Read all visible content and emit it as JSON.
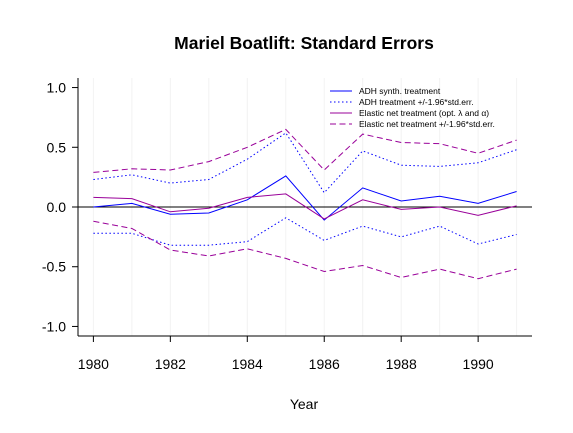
{
  "chart_data": {
    "type": "line",
    "title": "Mariel Boatlift: Standard Errors",
    "xlabel": "Year",
    "ylabel": "",
    "xlim": [
      1979.6,
      1991.4
    ],
    "ylim": [
      -1.08,
      1.08
    ],
    "x": [
      1980,
      1981,
      1982,
      1983,
      1984,
      1985,
      1986,
      1987,
      1988,
      1989,
      1990,
      1991
    ],
    "x_ticks": [
      1980,
      1982,
      1984,
      1986,
      1988,
      1990
    ],
    "x_tick_labels": [
      "1980",
      "1982",
      "1984",
      "1986",
      "1988",
      "1990"
    ],
    "y_ticks": [
      -1.0,
      -0.5,
      0.0,
      0.5,
      1.0
    ],
    "y_tick_labels": [
      "-1.0",
      "-0.5",
      "0.0",
      "0.5",
      "1.0"
    ],
    "zero_line": true,
    "vertical_grid": true,
    "legend_position": "top-right",
    "colors": {
      "adh": "#0000ff",
      "elastic": "#990099",
      "zero": "#000000",
      "grid": "#f2f2f2"
    },
    "series": [
      {
        "name": "ADH synth. treatment",
        "style": "solid",
        "color": "#0000ff",
        "values": [
          0.0,
          0.03,
          -0.06,
          -0.05,
          0.06,
          0.26,
          -0.11,
          0.16,
          0.05,
          0.09,
          0.03,
          0.13
        ]
      },
      {
        "name": "ADH treatment +/-1.96*std.err.",
        "style": "dotted",
        "color": "#0000ff",
        "values": [
          0.23,
          0.27,
          0.2,
          0.23,
          0.4,
          0.62,
          0.12,
          0.47,
          0.35,
          0.34,
          0.37,
          0.48
        ]
      },
      {
        "name": "",
        "style": "dotted",
        "color": "#0000ff",
        "values": [
          -0.22,
          -0.22,
          -0.32,
          -0.32,
          -0.29,
          -0.09,
          -0.28,
          -0.16,
          -0.25,
          -0.16,
          -0.31,
          -0.23
        ]
      },
      {
        "name": "Elastic net treatment (opt. λ and α)",
        "style": "solid",
        "color": "#990099",
        "values": [
          0.08,
          0.07,
          -0.04,
          -0.01,
          0.08,
          0.11,
          -0.1,
          0.06,
          -0.02,
          0.0,
          -0.07,
          0.01
        ]
      },
      {
        "name": "Elastic net treatment +/-1.96*std.err.",
        "style": "dashed",
        "color": "#990099",
        "values": [
          0.29,
          0.32,
          0.31,
          0.38,
          0.5,
          0.65,
          0.31,
          0.61,
          0.54,
          0.53,
          0.45,
          0.56
        ]
      },
      {
        "name": "",
        "style": "dashed",
        "color": "#990099",
        "values": [
          -0.12,
          -0.18,
          -0.36,
          -0.41,
          -0.35,
          -0.43,
          -0.54,
          -0.49,
          -0.59,
          -0.52,
          -0.6,
          -0.52
        ]
      }
    ],
    "legend": [
      {
        "label": "ADH synth. treatment",
        "style": "solid",
        "color": "#0000ff"
      },
      {
        "label": "ADH treatment +/-1.96*std.err.",
        "style": "dotted",
        "color": "#0000ff"
      },
      {
        "label": "Elastic net treatment (opt. λ and α)",
        "style": "solid",
        "color": "#990099"
      },
      {
        "label": "Elastic net treatment +/-1.96*std.err.",
        "style": "dashed",
        "color": "#990099"
      }
    ]
  }
}
